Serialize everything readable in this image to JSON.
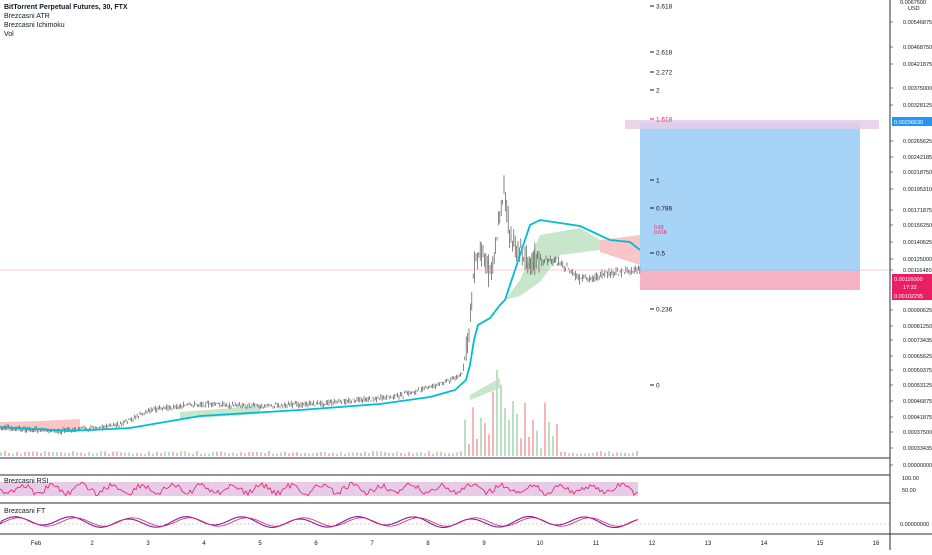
{
  "header": {
    "symbol_title": "BitTorrent Perpetual Futures, 30, FTX",
    "indicators": [
      "Brezcasni ATR",
      "Brezcasni Ichimoku",
      "Vol"
    ]
  },
  "rsi_pane": {
    "label": "Brezcasni RSI",
    "ticks": [
      "100.00",
      "50.00"
    ]
  },
  "ft_pane": {
    "label": "Brezcasni FT",
    "ticks": [
      "0.00000000"
    ]
  },
  "price_axis": {
    "currency": "USD",
    "top_tick": "0.0067500",
    "ticks": [
      "0.00546875",
      "0.00468750",
      "0.00421875",
      "0.00375000",
      "0.00328125",
      "0.00265625",
      "0.00242185",
      "0.00218750",
      "0.00195310",
      "0.00171875",
      "0.00156250",
      "0.00140625",
      "0.00125000",
      "0.00116480",
      "0.00090625",
      "0.00081250",
      "0.00073435",
      "0.00065625",
      "0.00059375",
      "0.00053125",
      "0.00046875",
      "0.00041875",
      "0.00037500",
      "0.00033435",
      "0.00000000"
    ],
    "current_price_label": "0.00116000",
    "countdown_label": "17:32",
    "stop_label": "0.00102295",
    "target_label": "0.00296630"
  },
  "fib_levels": [
    {
      "label": "3.618",
      "color": "#131722"
    },
    {
      "label": "2.618",
      "color": "#131722"
    },
    {
      "label": "2.272",
      "color": "#131722"
    },
    {
      "label": "2",
      "color": "#131722"
    },
    {
      "label": "1.618",
      "color": "#e91e63"
    },
    {
      "label": "1",
      "color": "#131722"
    },
    {
      "label": "0.786",
      "color": "#131722"
    },
    {
      "label": "0.5",
      "color": "#131722"
    },
    {
      "label": "0.236",
      "color": "#131722"
    },
    {
      "label": "0",
      "color": "#131722"
    }
  ],
  "time_axis": {
    "labels": [
      "Feb",
      "2",
      "3",
      "4",
      "5",
      "6",
      "7",
      "8",
      "9",
      "10",
      "11",
      "12",
      "13",
      "14",
      "15",
      "16"
    ]
  },
  "colors": {
    "candle": "#555555",
    "atr_line": "#00bcd4",
    "cloud_green": "#c8e6c9",
    "cloud_red": "#f8c6c6",
    "volume_red": "#f4b6b6",
    "volume_green": "#b9e0c2",
    "target_zone": "#a7d3f6",
    "stop_zone": "#f7b3c6",
    "rsi_band": "#e6cce6",
    "rsi_line": "#e91e63",
    "ft_line1": "#7b1fa2",
    "ft_line2": "#e91e63",
    "price_line": "#f48fb1"
  }
}
